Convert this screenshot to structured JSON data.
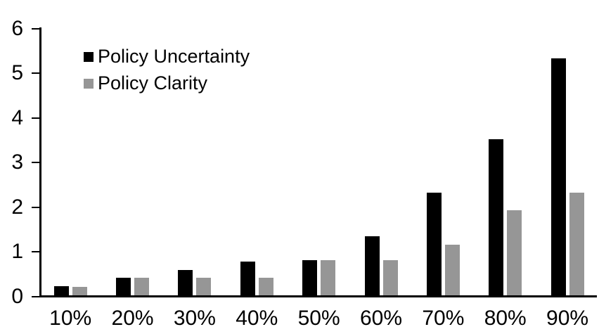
{
  "chart": {
    "background_color": "#ffffff",
    "axis_color": "#000000"
  },
  "chart_data": {
    "type": "bar",
    "title": "",
    "categories": [
      "10%",
      "20%",
      "30%",
      "40%",
      "50%",
      "60%",
      "70%",
      "80%",
      "90%"
    ],
    "series": [
      {
        "name": "Policy Uncertainty",
        "color": "#000000",
        "values": [
          0.2,
          0.4,
          0.57,
          0.76,
          0.79,
          1.33,
          2.3,
          3.5,
          5.3
        ]
      },
      {
        "name": "Policy Clarity",
        "color": "#969696",
        "values": [
          0.19,
          0.39,
          0.39,
          0.39,
          0.78,
          0.78,
          1.13,
          1.9,
          2.3
        ]
      }
    ],
    "xlabel": "",
    "ylabel": "",
    "ylim": [
      0,
      6
    ],
    "yticks": [
      0,
      1,
      2,
      3,
      4,
      5,
      6
    ],
    "grid": false,
    "legend_position": "top-left"
  }
}
